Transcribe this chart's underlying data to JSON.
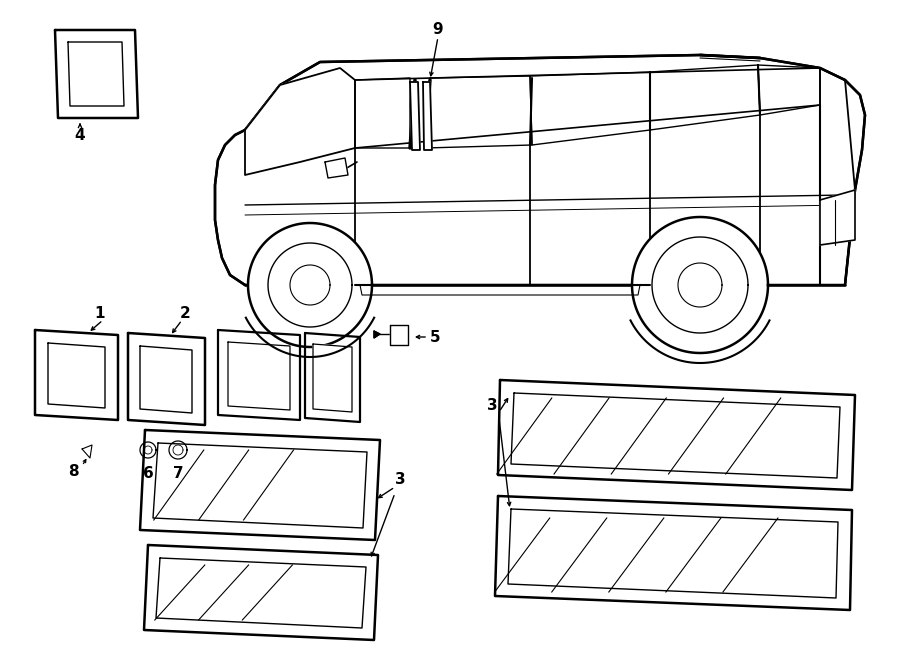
{
  "background_color": "#ffffff",
  "line_color": "#000000",
  "figure_width": 9.0,
  "figure_height": 6.61,
  "dpi": 100
}
